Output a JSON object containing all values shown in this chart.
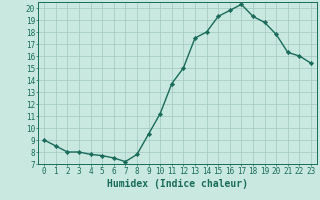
{
  "x": [
    0,
    1,
    2,
    3,
    4,
    5,
    6,
    7,
    8,
    9,
    10,
    11,
    12,
    13,
    14,
    15,
    16,
    17,
    18,
    19,
    20,
    21,
    22,
    23
  ],
  "y": [
    9.0,
    8.5,
    8.0,
    8.0,
    7.8,
    7.7,
    7.5,
    7.2,
    7.8,
    9.5,
    11.2,
    13.7,
    15.0,
    17.5,
    18.0,
    19.3,
    19.8,
    20.3,
    19.3,
    18.8,
    17.8,
    16.3,
    16.0,
    15.4
  ],
  "line_color": "#1a6b5a",
  "marker": "D",
  "markersize": 2.2,
  "linewidth": 1.0,
  "bg_color": "#c8e8e0",
  "grid_color": "#a0c8c0",
  "xlabel": "Humidex (Indice chaleur)",
  "xlim": [
    -0.5,
    23.5
  ],
  "ylim": [
    7,
    20.5
  ],
  "yticks": [
    7,
    8,
    9,
    10,
    11,
    12,
    13,
    14,
    15,
    16,
    17,
    18,
    19,
    20
  ],
  "xticks": [
    0,
    1,
    2,
    3,
    4,
    5,
    6,
    7,
    8,
    9,
    10,
    11,
    12,
    13,
    14,
    15,
    16,
    17,
    18,
    19,
    20,
    21,
    22,
    23
  ],
  "tick_color": "#1a6b5a",
  "label_fontsize": 5.5,
  "xlabel_fontsize": 7.0
}
